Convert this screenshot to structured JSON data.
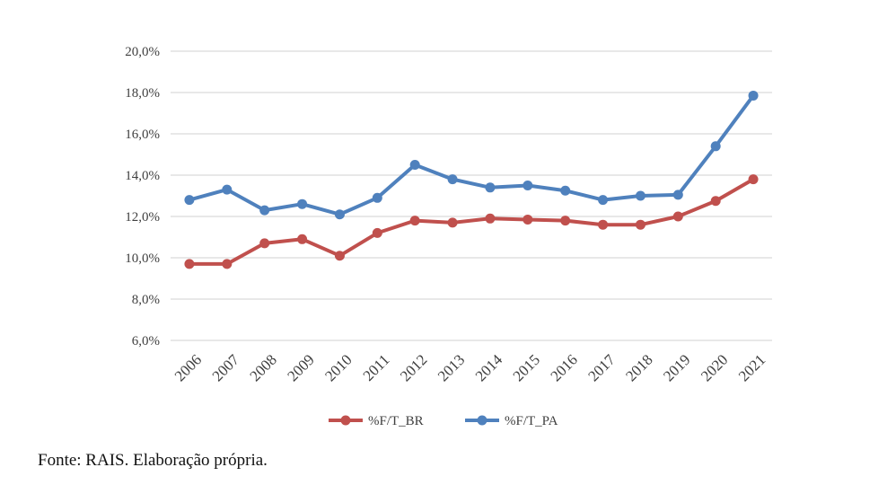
{
  "chart_data": {
    "type": "line",
    "categories": [
      "2006",
      "2007",
      "2008",
      "2009",
      "2010",
      "2011",
      "2012",
      "2013",
      "2014",
      "2015",
      "2016",
      "2017",
      "2018",
      "2019",
      "2020",
      "2021"
    ],
    "series": [
      {
        "name": "%F/T_BR",
        "color": "#C0504D",
        "values": [
          9.7,
          9.7,
          10.7,
          10.9,
          10.1,
          11.2,
          11.8,
          11.7,
          11.9,
          11.85,
          11.8,
          11.6,
          11.6,
          12.0,
          12.75,
          13.8
        ]
      },
      {
        "name": "%F/T_PA",
        "color": "#4F81BD",
        "values": [
          12.8,
          13.3,
          12.3,
          12.6,
          12.1,
          12.9,
          14.5,
          13.8,
          13.4,
          13.5,
          13.25,
          12.8,
          13.0,
          13.05,
          15.4,
          17.85
        ]
      }
    ],
    "y_ticks": [
      "6,0%",
      "8,0%",
      "10,0%",
      "12,0%",
      "14,0%",
      "16,0%",
      "18,0%",
      "20,0%"
    ],
    "ylim": [
      6,
      20
    ],
    "grid": "horizontal",
    "legend_position": "bottom"
  },
  "source_text": "Fonte: RAIS. Elaboração própria."
}
